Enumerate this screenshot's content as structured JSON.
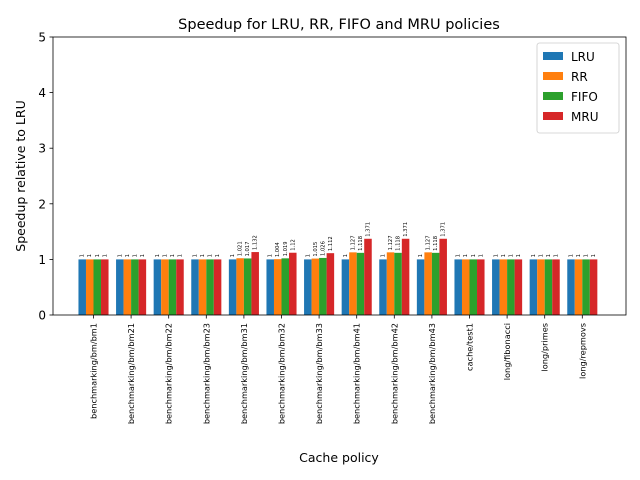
{
  "chart_data": {
    "type": "bar",
    "title": "Speedup for LRU, RR, FIFO and MRU policies",
    "xlabel": "Cache policy",
    "ylabel": "Speedup relative to LRU",
    "ylim": [
      0,
      5
    ],
    "yticks": [
      0,
      1,
      2,
      3,
      4,
      5
    ],
    "grid": false,
    "legend": "top-right",
    "categories": [
      "benchmarking/bm/bm1",
      "benchmarking/bm/bm21",
      "benchmarking/bm/bm22",
      "benchmarking/bm/bm23",
      "benchmarking/bm/bm31",
      "benchmarking/bm/bm32",
      "benchmarking/bm/bm33",
      "benchmarking/bm/bm41",
      "benchmarking/bm/bm42",
      "benchmarking/bm/bm43",
      "cache/test1",
      "long/fibonacci",
      "long/primes",
      "long/repmovs"
    ],
    "series": [
      {
        "name": "LRU",
        "color": "#1f77b4",
        "values": [
          1,
          1,
          1,
          1,
          1,
          1,
          1,
          1,
          1,
          1,
          1,
          1,
          1,
          1
        ]
      },
      {
        "name": "RR",
        "color": "#ff7f0e",
        "values": [
          1,
          1,
          1,
          1,
          1.021,
          1.004,
          1.015,
          1.127,
          1.127,
          1.127,
          1,
          1,
          1,
          1
        ]
      },
      {
        "name": "FIFO",
        "color": "#2ca02c",
        "values": [
          1,
          1,
          1,
          1,
          1.017,
          1.019,
          1.026,
          1.118,
          1.118,
          1.118,
          1,
          1,
          1,
          1
        ]
      },
      {
        "name": "MRU",
        "color": "#d62728",
        "values": [
          1,
          1,
          1,
          1,
          1.132,
          1.12,
          1.112,
          1.371,
          1.371,
          1.371,
          1,
          1,
          1,
          1
        ]
      }
    ],
    "data_labels": [
      [
        "1",
        "1",
        "1",
        "1"
      ],
      [
        "1",
        "1",
        "1",
        "1"
      ],
      [
        "1",
        "1",
        "1",
        "1"
      ],
      [
        "1",
        "1",
        "1",
        "1"
      ],
      [
        "1",
        "1.021",
        "1.017",
        "1.132"
      ],
      [
        "1",
        "1.004",
        "1.019",
        "1.12"
      ],
      [
        "1",
        "1.015",
        "1.026",
        "1.112"
      ],
      [
        "1",
        "1.127",
        "1.118",
        "1.371"
      ],
      [
        "1",
        "1.127",
        "1.118",
        "1.371"
      ],
      [
        "1",
        "1.127",
        "1.118",
        "1.371"
      ],
      [
        "1",
        "1",
        "1",
        "1"
      ],
      [
        "1",
        "1",
        "1",
        "1"
      ],
      [
        "1",
        "1",
        "1",
        "1"
      ],
      [
        "1",
        "1",
        "1",
        "1"
      ]
    ]
  }
}
